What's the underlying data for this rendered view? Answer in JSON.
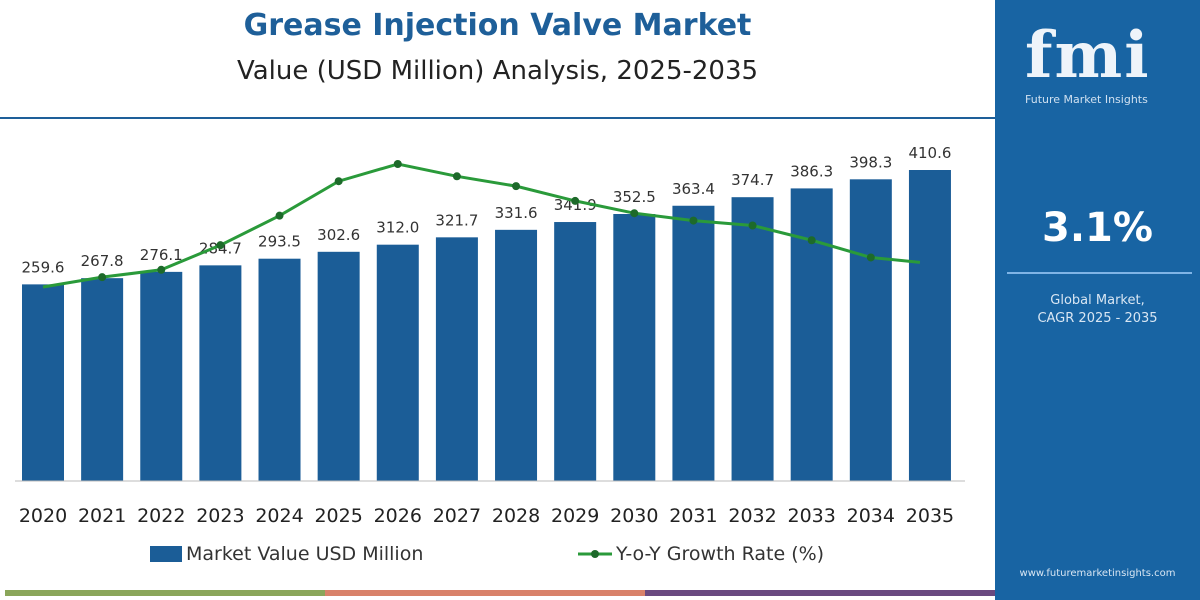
{
  "header": {
    "title": "Grease Injection Valve Market",
    "subtitle": "Value (USD Million) Analysis, 2025-2035"
  },
  "panel": {
    "logo": "fmi",
    "logo_tagline": "Future Market Insights",
    "cagr_value": "3.1%",
    "cagr_label_line1": "Global Market,",
    "cagr_label_line2": "CAGR 2025 - 2035",
    "url": "www.futuremarketinsights.com"
  },
  "colors": {
    "bar": "#1b5d97",
    "line": "#2a9a3a",
    "panel": "#1864a3",
    "title": "#1e5f99"
  },
  "chart_data": {
    "type": "bar+line",
    "categories": [
      "2020",
      "2021",
      "2022",
      "2023",
      "2024",
      "2025",
      "2026",
      "2027",
      "2028",
      "2029",
      "2030",
      "2031",
      "2032",
      "2033",
      "2034",
      "2035"
    ],
    "series": [
      {
        "name": "Market Value USD Million",
        "type": "bar",
        "values": [
          259.6,
          267.8,
          276.1,
          284.7,
          293.5,
          302.6,
          312.0,
          321.7,
          331.6,
          341.9,
          352.5,
          363.4,
          374.7,
          386.3,
          398.3,
          410.6
        ],
        "data_labels": [
          "259.6",
          "267.8",
          "276.1",
          "284.7",
          "293.5",
          "302.6",
          "312.0",
          "321.7",
          "331.6",
          "341.9",
          "352.5",
          "363.4",
          "374.7",
          "386.3",
          "398.3",
          "410.6"
        ]
      },
      {
        "name": "Y-o-Y Growth Rate (%)",
        "type": "line",
        "values": [
          2.9,
          2.94,
          2.97,
          3.07,
          3.19,
          3.33,
          3.4,
          3.35,
          3.31,
          3.25,
          3.2,
          3.17,
          3.15,
          3.09,
          3.02,
          3.0
        ]
      }
    ],
    "ylim": [
      0,
      420
    ],
    "grid": false,
    "legend": "bottom"
  }
}
